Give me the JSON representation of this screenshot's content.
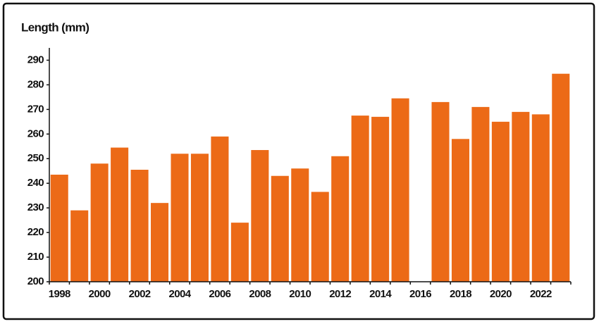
{
  "chart_data": {
    "type": "bar",
    "title": "Length (mm)",
    "categories": [
      "1998",
      null,
      "2000",
      null,
      "2002",
      null,
      "2004",
      null,
      "2006",
      null,
      "2008",
      null,
      "2010",
      null,
      "2012",
      null,
      "2014",
      null,
      "2016",
      null,
      "2018",
      null,
      "2020",
      null,
      "2022",
      null
    ],
    "values": [
      243.5,
      229,
      248,
      254.5,
      245.5,
      232,
      252,
      252,
      259,
      224,
      253.5,
      243,
      246,
      236.5,
      251,
      267.5,
      267,
      274.5,
      null,
      273,
      258,
      271,
      265,
      269,
      268,
      284.5
    ],
    "color": "#ec6a17",
    "ylim": [
      200,
      295
    ],
    "yticks": [
      200,
      210,
      220,
      230,
      240,
      250,
      260,
      270,
      280,
      290
    ],
    "grid": false
  }
}
